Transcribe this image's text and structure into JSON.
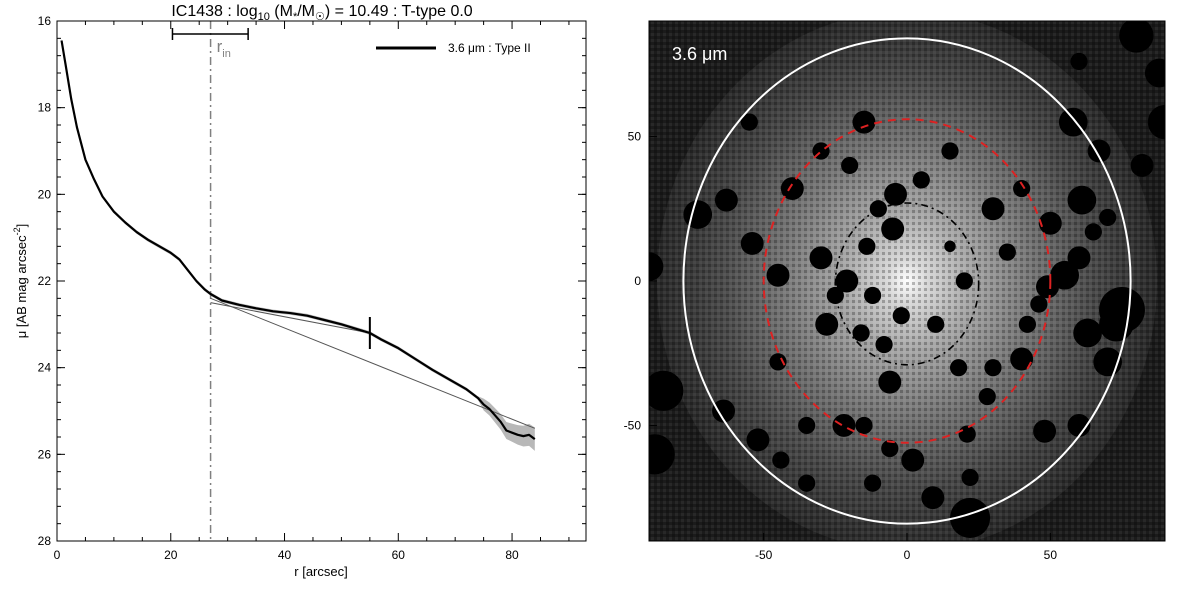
{
  "chart_data": [
    {
      "type": "line",
      "title": "IC1438 : log10 (M*/M☉) = 10.49 : T-type 0.0",
      "title_parts": {
        "galaxy": "IC1438 : log",
        "log_sub": "10",
        "mass_open": " (M",
        "mass_star": "*",
        "mass_mid": "/M",
        "mass_sun": "☉",
        "mass_close": ") = 10.49 : T-type 0.0"
      },
      "xlabel": "r [arcsec]",
      "ylabel": "μ [AB mag arcsec",
      "ylabel_exp": "-2",
      "ylabel_close": "]",
      "xlim": [
        0,
        93
      ],
      "ylim": [
        28,
        16
      ],
      "y_inverted": true,
      "xticks": [
        0,
        20,
        40,
        60,
        80
      ],
      "yticks": [
        16,
        18,
        20,
        22,
        24,
        26,
        28
      ],
      "legend": {
        "placement": "top-right",
        "label": "3.6 μm : Type II"
      },
      "inner_radius": {
        "label": "r",
        "label_sub": "in",
        "value": 27,
        "range": [
          20.3,
          33.6
        ],
        "color": "#808080"
      },
      "break_radius": 55,
      "series": [
        {
          "name": "3.6 μm : Type II",
          "color": "#000000",
          "x": [
            0.8,
            1.5,
            2.5,
            3.5,
            5,
            6.5,
            8,
            10,
            12,
            14,
            16,
            18,
            20,
            21.5,
            23,
            24.5,
            26,
            27,
            29,
            32,
            35,
            38,
            41,
            44,
            47,
            50,
            53,
            55,
            57,
            60,
            63,
            66,
            68,
            70,
            72,
            74,
            75,
            76,
            77,
            78,
            79,
            80,
            81,
            82,
            83,
            84
          ],
          "y": [
            16.45,
            17.0,
            17.8,
            18.45,
            19.2,
            19.65,
            20.05,
            20.4,
            20.65,
            20.87,
            21.05,
            21.2,
            21.35,
            21.5,
            21.75,
            22.0,
            22.2,
            22.3,
            22.45,
            22.55,
            22.63,
            22.7,
            22.74,
            22.8,
            22.9,
            23.0,
            23.12,
            23.2,
            23.35,
            23.55,
            23.8,
            24.05,
            24.2,
            24.35,
            24.5,
            24.7,
            24.85,
            24.95,
            25.1,
            25.25,
            25.45,
            25.5,
            25.55,
            25.58,
            25.55,
            25.65
          ]
        }
      ],
      "fits": [
        {
          "x": [
            27,
            84
          ],
          "y": [
            22.4,
            25.4
          ],
          "color": "#555555"
        },
        {
          "x": [
            27,
            55
          ],
          "y": [
            22.5,
            23.2
          ],
          "color": "#555555"
        }
      ]
    },
    {
      "type": "image",
      "label": "3.6 μm",
      "xlim": [
        -90,
        90
      ],
      "ylim": [
        -90,
        90
      ],
      "xticks": [
        -50,
        0,
        50
      ],
      "yticks": [
        -50,
        0,
        50
      ],
      "outer_ellipse": {
        "cx": 0,
        "cy": 0,
        "rx": 78,
        "ry": 84,
        "color": "#ffffff",
        "style": "solid"
      },
      "break_ellipse": {
        "cx": 0,
        "cy": 0,
        "rx": 50,
        "ry": 56,
        "color": "#dd2222",
        "style": "dashed"
      },
      "inner_ellipse": {
        "cx": 0,
        "cy": -1,
        "rx": 25,
        "ry": 28,
        "color": "#000000",
        "style": "dash-dot"
      },
      "masks": [
        [
          22,
          -82,
          7
        ],
        [
          -5,
          18,
          4
        ],
        [
          -16,
          -18,
          3
        ],
        [
          -8,
          -22,
          3
        ],
        [
          -45,
          -28,
          3
        ],
        [
          -28,
          -15,
          4
        ],
        [
          15,
          12,
          2
        ],
        [
          -15,
          -50,
          3
        ],
        [
          -35,
          -70,
          3
        ],
        [
          -22,
          -50,
          4
        ],
        [
          -12,
          -70,
          3
        ],
        [
          18,
          -30,
          3
        ],
        [
          -45,
          2,
          4
        ],
        [
          -63,
          28,
          4
        ],
        [
          30,
          -30,
          3
        ],
        [
          40,
          -27,
          4
        ],
        [
          48,
          -52,
          4
        ],
        [
          -88,
          -60,
          7
        ],
        [
          -85,
          -38,
          7
        ],
        [
          -90,
          5,
          5
        ],
        [
          -73,
          23,
          5
        ],
        [
          -64,
          -45,
          4
        ],
        [
          -54,
          13,
          4
        ],
        [
          -30,
          8,
          4
        ],
        [
          -21,
          0,
          4
        ],
        [
          -14,
          12,
          3
        ],
        [
          -10,
          25,
          3
        ],
        [
          -6,
          -35,
          4
        ],
        [
          -35,
          -50,
          3
        ],
        [
          -44,
          -62,
          3
        ],
        [
          -52,
          -55,
          4
        ],
        [
          -6,
          -58,
          3
        ],
        [
          2,
          -62,
          4
        ],
        [
          9,
          -75,
          4
        ],
        [
          21,
          -53,
          3
        ],
        [
          28,
          -40,
          3
        ],
        [
          22,
          -68,
          3
        ],
        [
          42,
          -15,
          3
        ],
        [
          46,
          -8,
          3
        ],
        [
          49,
          -2,
          4
        ],
        [
          55,
          2,
          5
        ],
        [
          60,
          8,
          4
        ],
        [
          65,
          17,
          3
        ],
        [
          70,
          22,
          3
        ],
        [
          61,
          28,
          5
        ],
        [
          67,
          45,
          4
        ],
        [
          58,
          55,
          5
        ],
        [
          60,
          76,
          3
        ],
        [
          80,
          85,
          6
        ],
        [
          88,
          72,
          5
        ],
        [
          90,
          55,
          6
        ],
        [
          82,
          40,
          4
        ],
        [
          75,
          -10,
          8
        ],
        [
          73,
          -15,
          6
        ],
        [
          63,
          -18,
          5
        ],
        [
          70,
          -28,
          5
        ],
        [
          60,
          -50,
          4
        ],
        [
          -55,
          55,
          3
        ],
        [
          -40,
          32,
          4
        ],
        [
          -30,
          45,
          3
        ],
        [
          -20,
          40,
          3
        ],
        [
          -15,
          55,
          4
        ],
        [
          -4,
          30,
          4
        ],
        [
          5,
          35,
          3
        ],
        [
          15,
          45,
          3
        ],
        [
          30,
          25,
          4
        ],
        [
          40,
          32,
          3
        ],
        [
          50,
          20,
          4
        ],
        [
          35,
          10,
          3
        ],
        [
          20,
          0,
          3
        ],
        [
          10,
          -15,
          3
        ],
        [
          -2,
          -12,
          3
        ],
        [
          -12,
          -5,
          3
        ],
        [
          -25,
          -5,
          3
        ]
      ]
    }
  ]
}
